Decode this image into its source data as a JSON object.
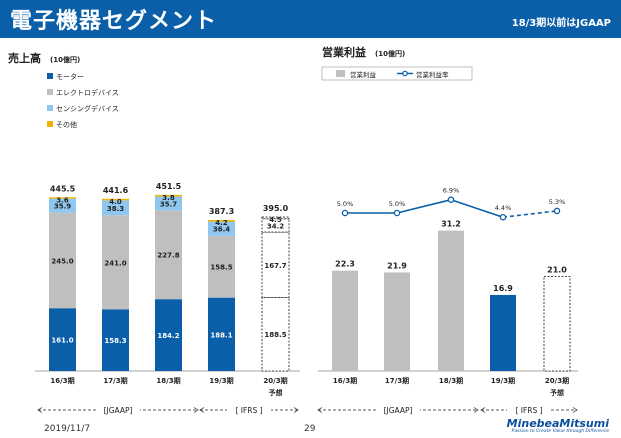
{
  "header": {
    "title": "電子機器セグメント",
    "note": "18/3期以前はJGAAP"
  },
  "footer": {
    "date": "2019/11/7",
    "page": "29",
    "logo": "MinebeaMitsumi",
    "logo_tagline": "Passion to Create Value through Difference"
  },
  "colors": {
    "header": "#0b5fa8",
    "motor": "#0b5fa8",
    "electro": "#bfbfbf",
    "sensing": "#8fc7f0",
    "other": "#f0b400",
    "profit_bar": "#bfbfbf",
    "profit_bar_ifrs": "#0b5fa8",
    "rate_line": "#0b5fa8"
  },
  "chart_data": [
    {
      "type": "bar",
      "stacked": true,
      "title": "売上高",
      "unit": "(10億円)",
      "categories": [
        "16/3期",
        "17/3期",
        "18/3期",
        "19/3期",
        "20/3期"
      ],
      "forecast_label": "予想",
      "forecast_index": 4,
      "series": [
        {
          "name": "モーター",
          "values": [
            161.0,
            158.3,
            184.2,
            188.1,
            188.5
          ]
        },
        {
          "name": "エレクトロデバイス",
          "values": [
            245.0,
            241.0,
            227.8,
            158.5,
            167.7
          ]
        },
        {
          "name": "センシングデバイス",
          "values": [
            35.9,
            38.3,
            35.7,
            36.4,
            34.2
          ]
        },
        {
          "name": "その他",
          "values": [
            3.6,
            4.0,
            3.8,
            4.2,
            4.5
          ]
        }
      ],
      "totals": [
        445.5,
        441.6,
        451.5,
        387.3,
        395.0
      ],
      "legend_position": "top-left",
      "ylim": [
        0,
        460
      ],
      "periods": [
        {
          "label": "[JGAAP]",
          "from": 0,
          "to": 2
        },
        {
          "label": "[ IFRS ]",
          "from": 3,
          "to": 4
        }
      ]
    },
    {
      "type": "bar",
      "title": "営業利益",
      "unit": "(10億円)",
      "categories": [
        "16/3期",
        "17/3期",
        "18/3期",
        "19/3期",
        "20/3期"
      ],
      "forecast_label": "予想",
      "forecast_index": 4,
      "series": [
        {
          "name": "営業利益",
          "values": [
            22.3,
            21.9,
            31.2,
            16.9,
            21.0
          ]
        }
      ],
      "line": {
        "name": "営業利益率",
        "values": [
          5.0,
          5.0,
          6.9,
          4.4,
          5.3
        ],
        "labels": [
          "5.0%",
          "5.0%",
          "6.9%",
          "4.4%",
          "5.3%"
        ],
        "dashed_from": 3
      },
      "legend_position": "top",
      "ylim": [
        0,
        40
      ],
      "periods": [
        {
          "label": "[JGAAP]",
          "from": 0,
          "to": 2
        },
        {
          "label": "[ IFRS ]",
          "from": 3,
          "to": 4
        }
      ]
    }
  ]
}
